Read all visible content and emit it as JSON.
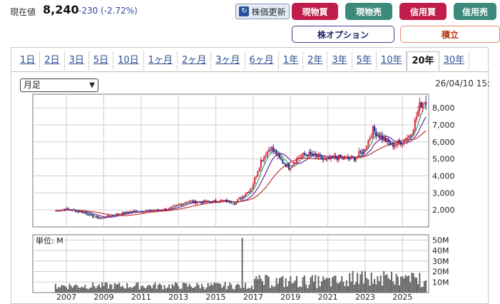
{
  "header": {
    "price_label": "現在値",
    "price_value": "8,240",
    "price_change": "-230 (-2.72%)"
  },
  "buttons": {
    "refresh": "株価更新",
    "buy": "現物買",
    "sell": "現物売",
    "margin": "信用買",
    "margin2": "信用売",
    "option": "株オプション",
    "tsumitate": "積立"
  },
  "tabs": [
    "1日",
    "2日",
    "3日",
    "5日",
    "10日",
    "1ヶ月",
    "2ヶ月",
    "3ヶ月",
    "6ヶ月",
    "1年",
    "2年",
    "3年",
    "5年",
    "10年",
    "20年",
    "30年"
  ],
  "active_tab": "20年",
  "period_select": "月足",
  "datetime": "26/04/10 15:",
  "chart_data": {
    "type": "candlestick",
    "x_ticks": [
      "2007",
      "2009",
      "2011",
      "2013",
      "2015",
      "2017",
      "2019",
      "2021",
      "2023",
      "2025"
    ],
    "price_axis": {
      "ticks": [
        2000,
        3000,
        4000,
        5000,
        6000,
        7000,
        8000
      ],
      "labels": [
        "2,000",
        "3,000",
        "4,000",
        "5,000",
        "6,000",
        "7,000",
        "8,000"
      ],
      "range": [
        1000,
        8800
      ]
    },
    "volume_axis": {
      "unit_label": "単位: M",
      "ticks": [
        10,
        20,
        30,
        40,
        50
      ],
      "labels": [
        "10M",
        "20M",
        "30M",
        "40M",
        "50M"
      ],
      "range": [
        0,
        55
      ]
    },
    "colors": {
      "up": "#d8243c",
      "down": "#1f2a8a",
      "ma_short": "#1f9f6f",
      "ma_mid": "#7a1fa0",
      "ma_long": "#c0392b",
      "volume": "#666666"
    },
    "monthly_close_keypoints": [
      [
        "2006-06",
        1950
      ],
      [
        "2006-12",
        2050
      ],
      [
        "2007-12",
        1850
      ],
      [
        "2008-06",
        1600
      ],
      [
        "2008-11",
        1500
      ],
      [
        "2009-06",
        1700
      ],
      [
        "2010-06",
        1900
      ],
      [
        "2011-06",
        1950
      ],
      [
        "2012-06",
        2050
      ],
      [
        "2012-12",
        2250
      ],
      [
        "2013-06",
        2500
      ],
      [
        "2014-06",
        2450
      ],
      [
        "2015-06",
        2550
      ],
      [
        "2016-01",
        2400
      ],
      [
        "2016-06",
        2800
      ],
      [
        "2016-12",
        3300
      ],
      [
        "2017-06",
        4900
      ],
      [
        "2017-12",
        5700
      ],
      [
        "2018-06",
        5000
      ],
      [
        "2018-12",
        4500
      ],
      [
        "2019-06",
        5100
      ],
      [
        "2019-12",
        5300
      ],
      [
        "2020-06",
        5100
      ],
      [
        "2020-12",
        4900
      ],
      [
        "2021-06",
        5100
      ],
      [
        "2021-12",
        5000
      ],
      [
        "2022-06",
        5050
      ],
      [
        "2022-12",
        5500
      ],
      [
        "2023-06",
        6700
      ],
      [
        "2023-12",
        6200
      ],
      [
        "2024-06",
        5800
      ],
      [
        "2024-12",
        6000
      ],
      [
        "2025-06",
        6400
      ],
      [
        "2025-09",
        7200
      ],
      [
        "2025-12",
        8100
      ],
      [
        "2026-03",
        8500
      ],
      [
        "2026-04",
        8240
      ]
    ],
    "volume_spike": {
      "date": "2016-06",
      "value": 52
    }
  }
}
